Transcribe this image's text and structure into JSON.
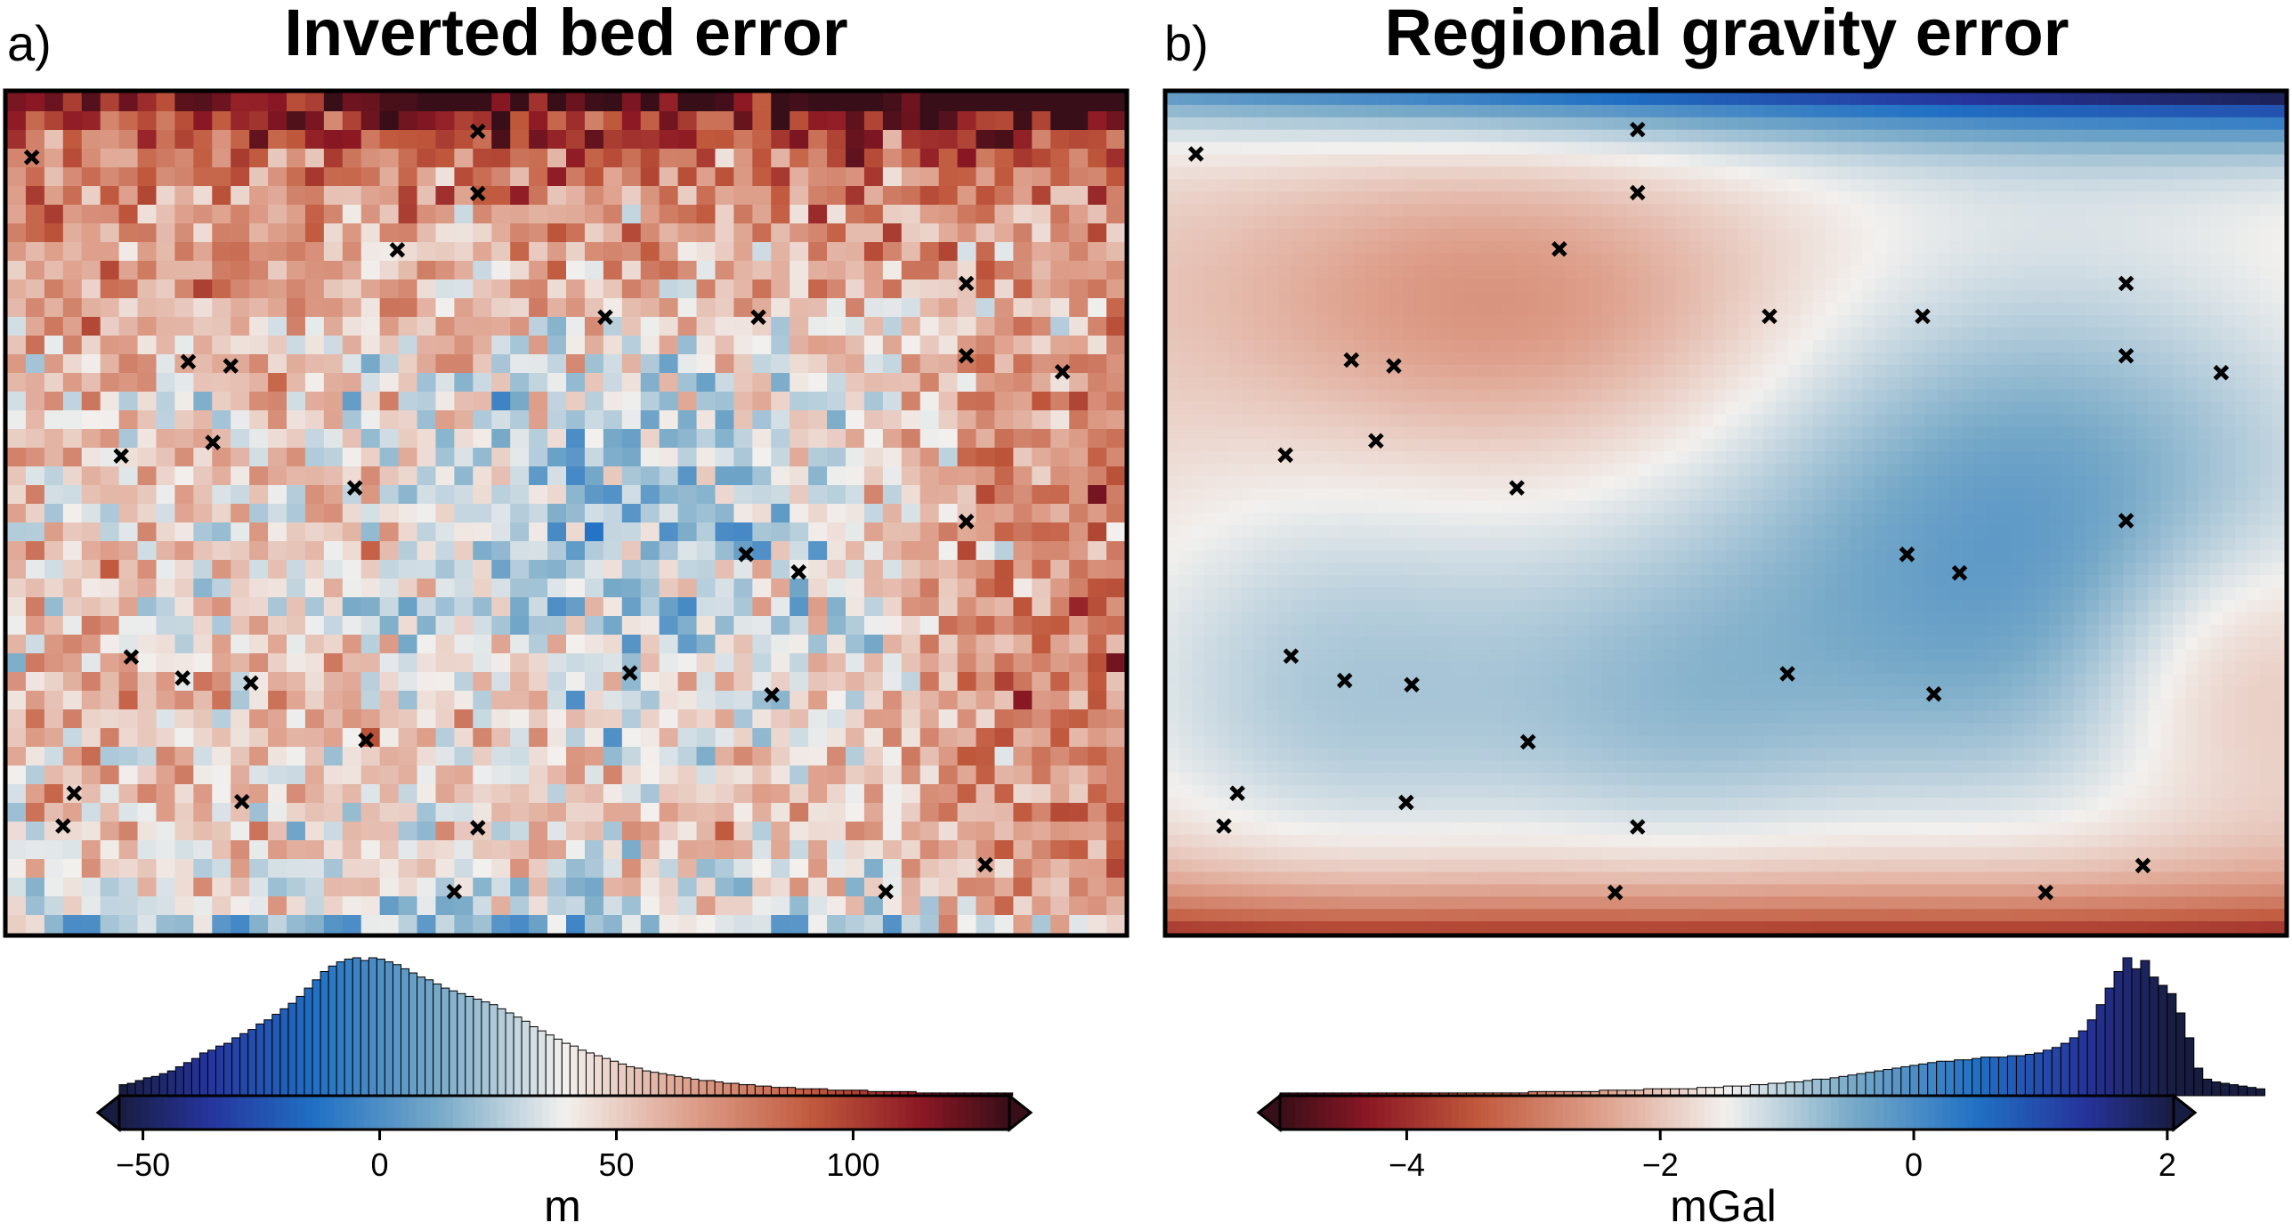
{
  "chart_data": [
    {
      "type": "heatmap",
      "panel_label": "a)",
      "title": "Inverted bed error",
      "colorbar": {
        "label": "m",
        "ticks": [
          "−50",
          "0",
          "50",
          "100"
        ],
        "tick_values": [
          -50,
          0,
          50,
          100
        ],
        "range": [
          -55,
          133
        ],
        "center": 0
      },
      "constraint_points": [
        [
          0.022,
          0.077
        ],
        [
          0.421,
          0.046
        ],
        [
          0.421,
          0.12
        ],
        [
          0.349,
          0.187
        ],
        [
          0.162,
          0.32
        ],
        [
          0.2,
          0.325
        ],
        [
          0.102,
          0.432
        ],
        [
          0.184,
          0.416
        ],
        [
          0.311,
          0.47
        ],
        [
          0.535,
          0.267
        ],
        [
          0.672,
          0.267
        ],
        [
          0.858,
          0.227
        ],
        [
          0.858,
          0.313
        ],
        [
          0.944,
          0.332
        ],
        [
          0.858,
          0.51
        ],
        [
          0.661,
          0.549
        ],
        [
          0.708,
          0.57
        ],
        [
          0.111,
          0.671
        ],
        [
          0.157,
          0.696
        ],
        [
          0.218,
          0.702
        ],
        [
          0.557,
          0.69
        ],
        [
          0.684,
          0.716
        ],
        [
          0.321,
          0.77
        ],
        [
          0.06,
          0.833
        ],
        [
          0.05,
          0.872
        ],
        [
          0.21,
          0.843
        ],
        [
          0.421,
          0.874
        ],
        [
          0.4,
          0.95
        ],
        [
          0.786,
          0.95
        ],
        [
          0.875,
          0.918
        ]
      ],
      "histogram": {
        "bin_start": -55,
        "bin_width": 1.7,
        "counts": [
          0.08,
          0.09,
          0.11,
          0.13,
          0.14,
          0.16,
          0.18,
          0.21,
          0.24,
          0.27,
          0.31,
          0.33,
          0.36,
          0.38,
          0.42,
          0.45,
          0.48,
          0.52,
          0.55,
          0.59,
          0.63,
          0.67,
          0.72,
          0.78,
          0.84,
          0.9,
          0.94,
          0.97,
          0.99,
          1.0,
          0.98,
          1.0,
          0.99,
          0.97,
          0.95,
          0.92,
          0.89,
          0.86,
          0.84,
          0.81,
          0.78,
          0.76,
          0.74,
          0.72,
          0.7,
          0.68,
          0.66,
          0.63,
          0.6,
          0.57,
          0.54,
          0.5,
          0.47,
          0.44,
          0.41,
          0.38,
          0.36,
          0.33,
          0.31,
          0.29,
          0.27,
          0.25,
          0.23,
          0.21,
          0.2,
          0.18,
          0.17,
          0.16,
          0.15,
          0.14,
          0.13,
          0.12,
          0.11,
          0.11,
          0.1,
          0.09,
          0.09,
          0.08,
          0.08,
          0.07,
          0.07,
          0.06,
          0.06,
          0.06,
          0.05,
          0.05,
          0.05,
          0.05,
          0.04,
          0.04,
          0.04,
          0.04,
          0.04,
          0.03,
          0.03,
          0.03,
          0.03,
          0.03,
          0.03,
          0.02,
          0.02,
          0.02,
          0.02,
          0.02,
          0.02,
          0.02,
          0.02,
          0.02,
          0.02,
          0.02,
          0.02
        ]
      },
      "field": "noisy: positive (red) in the north and east, negative (blue) in the centre and southern edge"
    },
    {
      "type": "heatmap",
      "panel_label": "b)",
      "title": "Regional gravity error",
      "colorbar": {
        "label": "mGal",
        "ticks": [
          "−4",
          "−2",
          "0",
          "2"
        ],
        "tick_values": [
          -4,
          -2,
          0,
          2
        ],
        "range": [
          -5.0,
          2.05
        ],
        "center": 0
      },
      "constraint_points": [
        [
          0.026,
          0.073
        ],
        [
          0.421,
          0.044
        ],
        [
          0.421,
          0.119
        ],
        [
          0.351,
          0.186
        ],
        [
          0.165,
          0.318
        ],
        [
          0.203,
          0.325
        ],
        [
          0.106,
          0.431
        ],
        [
          0.187,
          0.414
        ],
        [
          0.313,
          0.47
        ],
        [
          0.539,
          0.266
        ],
        [
          0.676,
          0.266
        ],
        [
          0.858,
          0.227
        ],
        [
          0.858,
          0.313
        ],
        [
          0.943,
          0.333
        ],
        [
          0.858,
          0.509
        ],
        [
          0.662,
          0.549
        ],
        [
          0.709,
          0.571
        ],
        [
          0.111,
          0.67
        ],
        [
          0.159,
          0.699
        ],
        [
          0.219,
          0.704
        ],
        [
          0.555,
          0.691
        ],
        [
          0.686,
          0.715
        ],
        [
          0.323,
          0.772
        ],
        [
          0.063,
          0.833
        ],
        [
          0.051,
          0.872
        ],
        [
          0.214,
          0.844
        ],
        [
          0.421,
          0.873
        ],
        [
          0.401,
          0.951
        ],
        [
          0.786,
          0.951
        ],
        [
          0.873,
          0.919
        ]
      ],
      "histogram": {
        "bin_start": -5.0,
        "bin_width": 0.07,
        "counts": [
          0.02,
          0.02,
          0.02,
          0.02,
          0.02,
          0.02,
          0.02,
          0.02,
          0.02,
          0.02,
          0.02,
          0.02,
          0.02,
          0.02,
          0.02,
          0.02,
          0.02,
          0.02,
          0.02,
          0.02,
          0.02,
          0.02,
          0.02,
          0.02,
          0.02,
          0.02,
          0.02,
          0.02,
          0.03,
          0.03,
          0.03,
          0.03,
          0.03,
          0.03,
          0.03,
          0.03,
          0.04,
          0.04,
          0.04,
          0.04,
          0.04,
          0.05,
          0.05,
          0.05,
          0.05,
          0.05,
          0.05,
          0.06,
          0.06,
          0.06,
          0.07,
          0.07,
          0.07,
          0.08,
          0.08,
          0.09,
          0.09,
          0.1,
          0.1,
          0.11,
          0.12,
          0.12,
          0.13,
          0.14,
          0.15,
          0.16,
          0.17,
          0.18,
          0.19,
          0.2,
          0.21,
          0.22,
          0.23,
          0.24,
          0.25,
          0.25,
          0.26,
          0.26,
          0.27,
          0.28,
          0.28,
          0.28,
          0.29,
          0.29,
          0.3,
          0.31,
          0.33,
          0.35,
          0.38,
          0.42,
          0.47,
          0.55,
          0.66,
          0.78,
          0.9,
          1.0,
          0.92,
          0.98,
          0.86,
          0.8,
          0.74,
          0.6,
          0.42,
          0.2,
          0.12,
          0.1,
          0.09,
          0.08,
          0.07,
          0.06,
          0.05
        ]
      },
      "field": "smooth: strongly positive band along the north edge, broad negative trough in the centre-east, strongly negative band along the south edge"
    }
  ]
}
